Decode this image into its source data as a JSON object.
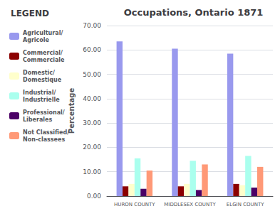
{
  "chart_data": {
    "type": "bar",
    "title": "Occupations, Ontario 1871",
    "ylabel": "Percentage",
    "legend_title": "LEGEND",
    "categories": [
      "HURON COUNTY",
      "MIDDLESEX COUNTY",
      "ELGIN COUNTY"
    ],
    "series": [
      {
        "name": "Agricultural/\nAgricole",
        "color": "#9999ee",
        "values": [
          63.5,
          60.5,
          58.5
        ]
      },
      {
        "name": "Commercial/\nCommerciale",
        "color": "#8b0000",
        "values": [
          4.0,
          4.0,
          5.0
        ]
      },
      {
        "name": "Domestic/\nDomestique",
        "color": "#ffffcc",
        "values": [
          5.0,
          5.0,
          4.5
        ]
      },
      {
        "name": "Industrial/\nIndustrielle",
        "color": "#aaffee",
        "values": [
          15.5,
          14.5,
          16.5
        ]
      },
      {
        "name": "Professional/\nLiberales",
        "color": "#4b0066",
        "values": [
          3.0,
          2.5,
          3.5
        ]
      },
      {
        "name": "Not Classified/\nNon-classees",
        "color": "#ff9977",
        "values": [
          10.5,
          13.0,
          12.0
        ]
      }
    ],
    "ylim": [
      0,
      70
    ],
    "yticks": [
      {
        "value": 0,
        "label": "0.00"
      },
      {
        "value": 10,
        "label": "10.00"
      },
      {
        "value": 20,
        "label": "20.00"
      },
      {
        "value": 30,
        "label": "30.00"
      },
      {
        "value": 40,
        "label": "40.00"
      },
      {
        "value": 50,
        "label": "50.00"
      },
      {
        "value": 60,
        "label": "60.00"
      },
      {
        "value": 70,
        "label": "70.00"
      }
    ],
    "grid": true,
    "legend": "left"
  }
}
